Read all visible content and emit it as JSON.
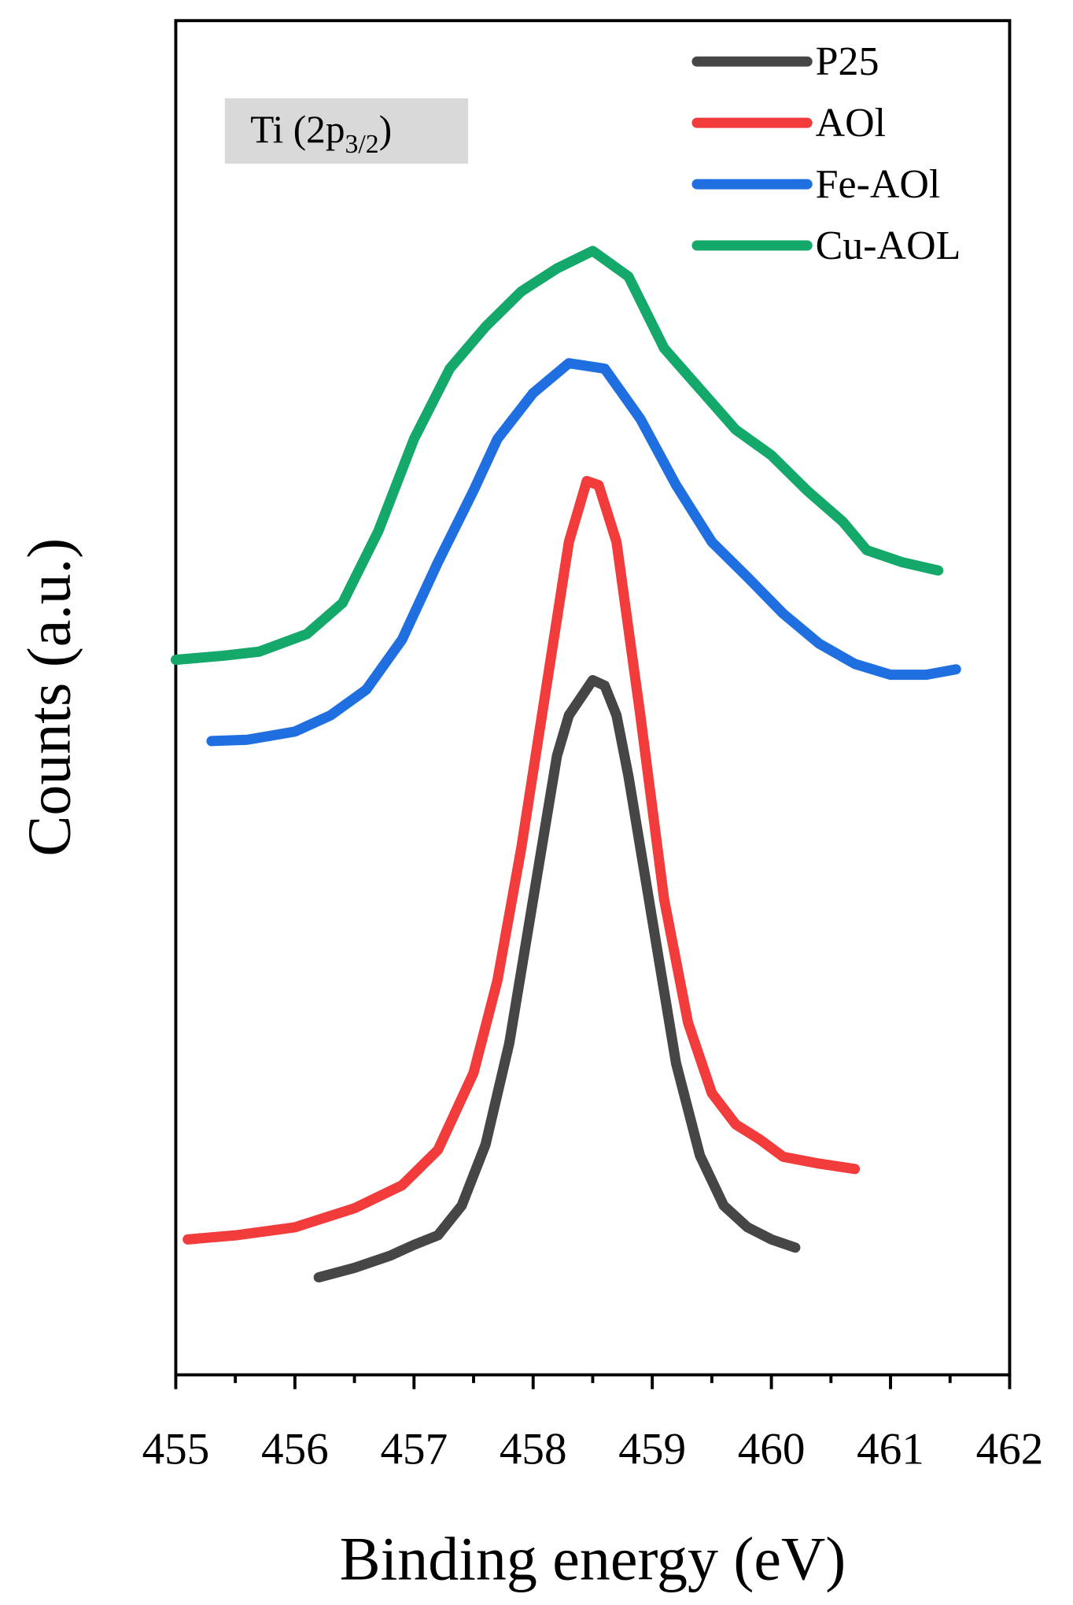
{
  "chart_data": {
    "type": "line",
    "x_label": "Binding energy (eV)",
    "y_label": "Counts (a.u.)",
    "annotation": [
      "Ti (2p",
      "3/2",
      ")"
    ],
    "xlim": [
      455,
      462
    ],
    "xticks": [
      455,
      456,
      457,
      458,
      459,
      460,
      461,
      462
    ],
    "ylim": [
      0,
      100
    ],
    "legend": "upper right",
    "series": [
      {
        "name": "P25",
        "color": "#464646",
        "x": [
          456.2,
          456.5,
          456.8,
          457.0,
          457.2,
          457.4,
          457.6,
          457.8,
          458.0,
          458.2,
          458.3,
          458.5,
          458.6,
          458.7,
          458.8,
          459.0,
          459.2,
          459.4,
          459.6,
          459.8,
          460.0,
          460.2
        ],
        "values": [
          7.2,
          7.9,
          8.8,
          9.6,
          10.3,
          12.5,
          17.0,
          24.5,
          35.1,
          45.7,
          48.7,
          51.3,
          50.9,
          48.7,
          44.2,
          33.6,
          23.0,
          16.2,
          12.5,
          10.9,
          10.0,
          9.4
        ]
      },
      {
        "name": "AOl",
        "color": "#f23c3c",
        "x": [
          455.1,
          455.5,
          456.0,
          456.5,
          456.9,
          457.2,
          457.5,
          457.7,
          457.9,
          458.1,
          458.3,
          458.45,
          458.55,
          458.7,
          458.9,
          459.1,
          459.3,
          459.5,
          459.7,
          459.9,
          460.1,
          460.4,
          460.7
        ],
        "values": [
          10.0,
          10.3,
          10.9,
          12.3,
          14.0,
          16.6,
          22.3,
          29.1,
          38.9,
          50.2,
          61.5,
          66.0,
          65.7,
          61.5,
          48.7,
          35.1,
          26.0,
          20.8,
          18.5,
          17.4,
          16.1,
          15.6,
          15.2
        ]
      },
      {
        "name": "Fe-AOl",
        "color": "#1f6fe0",
        "x": [
          455.3,
          455.6,
          456.0,
          456.3,
          456.6,
          456.9,
          457.2,
          457.5,
          457.7,
          458.0,
          458.3,
          458.6,
          458.9,
          459.2,
          459.5,
          459.8,
          460.1,
          460.4,
          460.7,
          461.0,
          461.3,
          461.55
        ],
        "values": [
          46.8,
          46.9,
          47.5,
          48.7,
          50.6,
          54.3,
          60.0,
          65.3,
          69.1,
          72.5,
          74.7,
          74.3,
          70.6,
          65.7,
          61.5,
          58.9,
          56.2,
          54.0,
          52.5,
          51.7,
          51.7,
          52.1
        ]
      },
      {
        "name": "Cu-AOL",
        "color": "#14a86a",
        "x": [
          455.0,
          455.4,
          455.7,
          456.1,
          456.4,
          456.7,
          457.0,
          457.3,
          457.6,
          457.9,
          458.2,
          458.5,
          458.8,
          459.1,
          459.4,
          459.7,
          460.0,
          460.3,
          460.6,
          460.8,
          461.1,
          461.4
        ],
        "values": [
          52.8,
          53.1,
          53.4,
          54.7,
          57.0,
          62.3,
          69.1,
          74.3,
          77.4,
          80.0,
          81.7,
          83.0,
          81.1,
          75.8,
          72.8,
          69.8,
          67.9,
          65.3,
          63.0,
          60.9,
          60.0,
          59.4
        ]
      }
    ]
  }
}
